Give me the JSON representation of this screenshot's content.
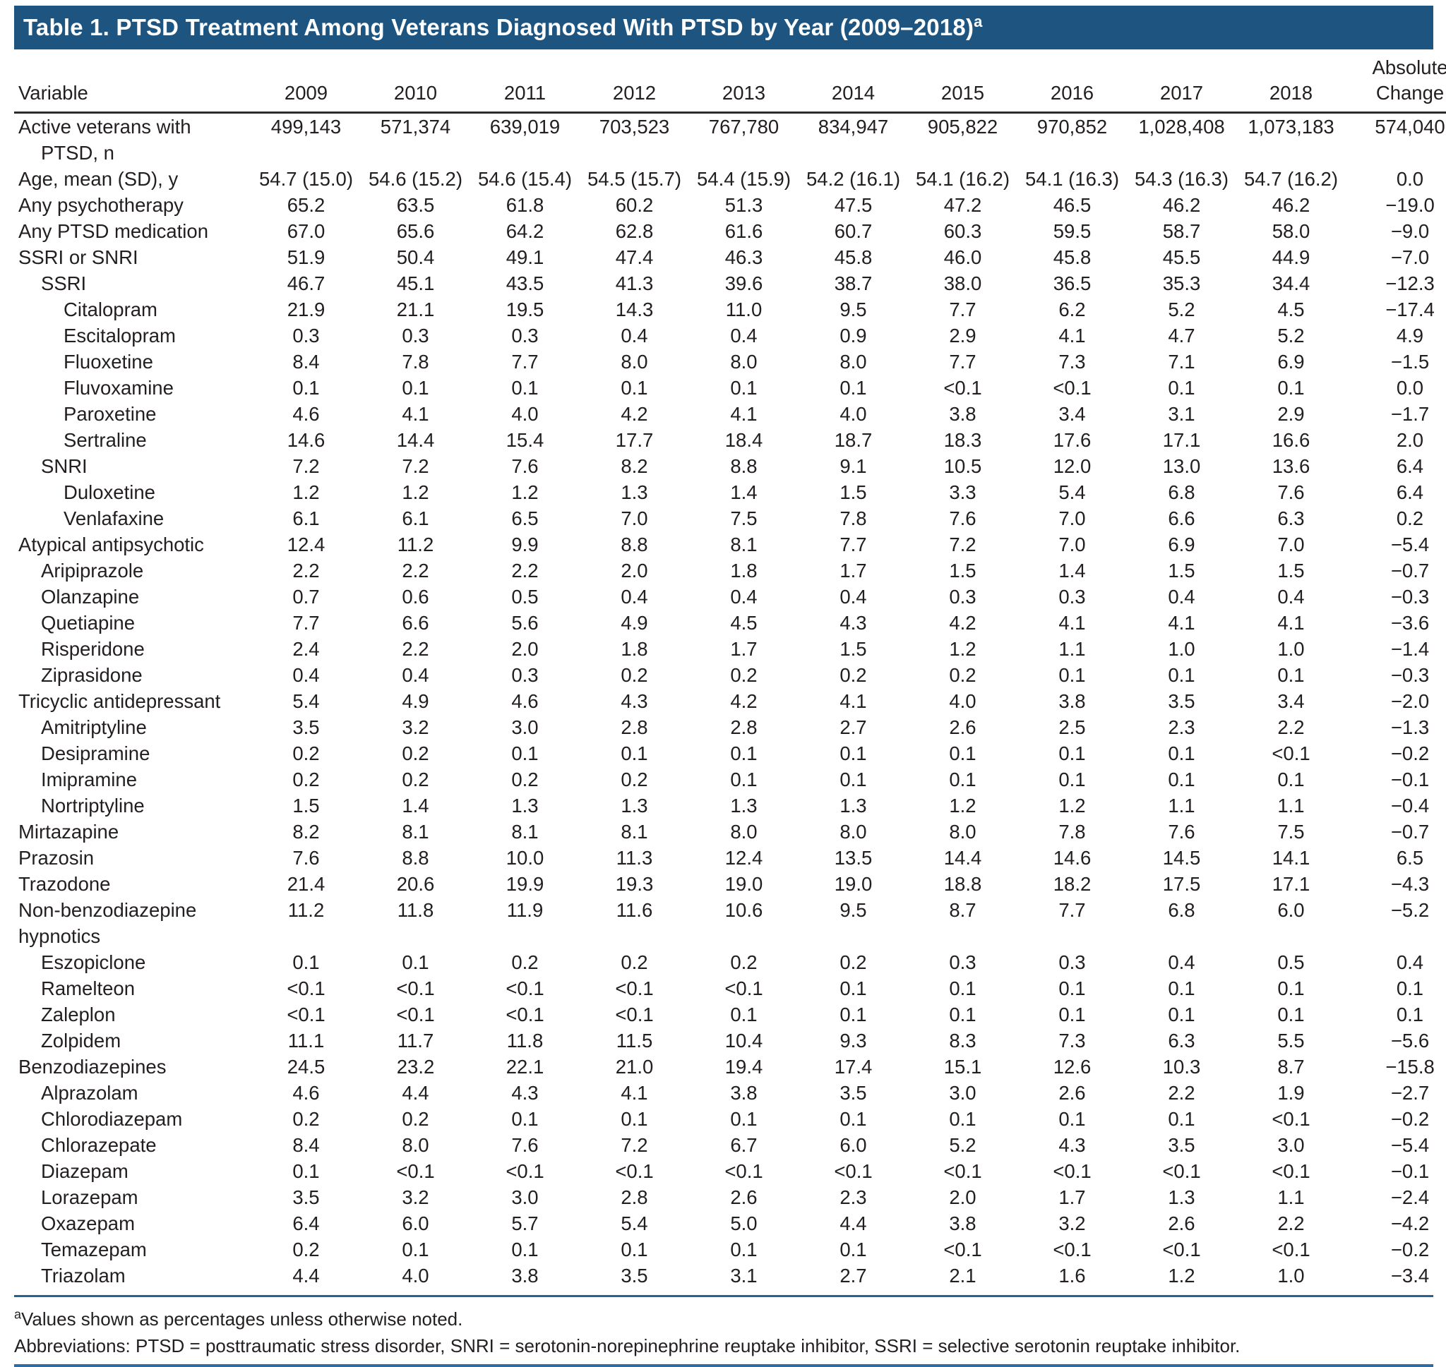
{
  "title": {
    "text": "Table 1. PTSD Treatment Among Veterans Diagnosed With PTSD by Year (2009–2018)",
    "superscript": "a"
  },
  "colors": {
    "title_bar_blue": "#1d5480",
    "header_rule_dark": "#2b2b2b",
    "upper_rule_blue": "#20648f",
    "bottom_rule_blue": "#2e6da4",
    "title_text": "#ffffff",
    "body_text": "#231f20"
  },
  "header": {
    "variable": "Variable",
    "years": [
      "2009",
      "2010",
      "2011",
      "2012",
      "2013",
      "2014",
      "2015",
      "2016",
      "2017",
      "2018"
    ],
    "change_line1": "Absolute",
    "change_line2": "Change"
  },
  "rows": [
    {
      "lines": [
        {
          "text": "Active veterans with",
          "indent": 0
        },
        {
          "text": "PTSD, n",
          "indent": 1
        }
      ],
      "values": [
        "499,143",
        "571,374",
        "639,019",
        "703,523",
        "767,780",
        "834,947",
        "905,822",
        "970,852",
        "1,028,408",
        "1,073,183",
        "574,040"
      ]
    },
    {
      "lines": [
        {
          "text": "Age, mean (SD), y",
          "indent": 0
        }
      ],
      "values": [
        "54.7 (15.0)",
        "54.6 (15.2)",
        "54.6 (15.4)",
        "54.5 (15.7)",
        "54.4 (15.9)",
        "54.2 (16.1)",
        "54.1 (16.2)",
        "54.1 (16.3)",
        "54.3 (16.3)",
        "54.7 (16.2)",
        "0.0"
      ]
    },
    {
      "lines": [
        {
          "text": "Any psychotherapy",
          "indent": 0
        }
      ],
      "values": [
        "65.2",
        "63.5",
        "61.8",
        "60.2",
        "51.3",
        "47.5",
        "47.2",
        "46.5",
        "46.2",
        "46.2",
        "−19.0"
      ]
    },
    {
      "lines": [
        {
          "text": "Any PTSD medication",
          "indent": 0
        }
      ],
      "values": [
        "67.0",
        "65.6",
        "64.2",
        "62.8",
        "61.6",
        "60.7",
        "60.3",
        "59.5",
        "58.7",
        "58.0",
        "−9.0"
      ]
    },
    {
      "lines": [
        {
          "text": "SSRI or SNRI",
          "indent": 0
        }
      ],
      "values": [
        "51.9",
        "50.4",
        "49.1",
        "47.4",
        "46.3",
        "45.8",
        "46.0",
        "45.8",
        "45.5",
        "44.9",
        "−7.0"
      ]
    },
    {
      "lines": [
        {
          "text": "SSRI",
          "indent": 1
        }
      ],
      "values": [
        "46.7",
        "45.1",
        "43.5",
        "41.3",
        "39.6",
        "38.7",
        "38.0",
        "36.5",
        "35.3",
        "34.4",
        "−12.3"
      ]
    },
    {
      "lines": [
        {
          "text": "Citalopram",
          "indent": 2
        }
      ],
      "values": [
        "21.9",
        "21.1",
        "19.5",
        "14.3",
        "11.0",
        "9.5",
        "7.7",
        "6.2",
        "5.2",
        "4.5",
        "−17.4"
      ]
    },
    {
      "lines": [
        {
          "text": "Escitalopram",
          "indent": 2
        }
      ],
      "values": [
        "0.3",
        "0.3",
        "0.3",
        "0.4",
        "0.4",
        "0.9",
        "2.9",
        "4.1",
        "4.7",
        "5.2",
        "4.9"
      ]
    },
    {
      "lines": [
        {
          "text": "Fluoxetine",
          "indent": 2
        }
      ],
      "values": [
        "8.4",
        "7.8",
        "7.7",
        "8.0",
        "8.0",
        "8.0",
        "7.7",
        "7.3",
        "7.1",
        "6.9",
        "−1.5"
      ]
    },
    {
      "lines": [
        {
          "text": "Fluvoxamine",
          "indent": 2
        }
      ],
      "values": [
        "0.1",
        "0.1",
        "0.1",
        "0.1",
        "0.1",
        "0.1",
        "<0.1",
        "<0.1",
        "0.1",
        "0.1",
        "0.0"
      ]
    },
    {
      "lines": [
        {
          "text": "Paroxetine",
          "indent": 2
        }
      ],
      "values": [
        "4.6",
        "4.1",
        "4.0",
        "4.2",
        "4.1",
        "4.0",
        "3.8",
        "3.4",
        "3.1",
        "2.9",
        "−1.7"
      ]
    },
    {
      "lines": [
        {
          "text": "Sertraline",
          "indent": 2
        }
      ],
      "values": [
        "14.6",
        "14.4",
        "15.4",
        "17.7",
        "18.4",
        "18.7",
        "18.3",
        "17.6",
        "17.1",
        "16.6",
        "2.0"
      ]
    },
    {
      "lines": [
        {
          "text": "SNRI",
          "indent": 1
        }
      ],
      "values": [
        "7.2",
        "7.2",
        "7.6",
        "8.2",
        "8.8",
        "9.1",
        "10.5",
        "12.0",
        "13.0",
        "13.6",
        "6.4"
      ]
    },
    {
      "lines": [
        {
          "text": "Duloxetine",
          "indent": 2
        }
      ],
      "values": [
        "1.2",
        "1.2",
        "1.2",
        "1.3",
        "1.4",
        "1.5",
        "3.3",
        "5.4",
        "6.8",
        "7.6",
        "6.4"
      ]
    },
    {
      "lines": [
        {
          "text": "Venlafaxine",
          "indent": 2
        }
      ],
      "values": [
        "6.1",
        "6.1",
        "6.5",
        "7.0",
        "7.5",
        "7.8",
        "7.6",
        "7.0",
        "6.6",
        "6.3",
        "0.2"
      ]
    },
    {
      "lines": [
        {
          "text": "Atypical antipsychotic",
          "indent": 0
        }
      ],
      "values": [
        "12.4",
        "11.2",
        "9.9",
        "8.8",
        "8.1",
        "7.7",
        "7.2",
        "7.0",
        "6.9",
        "7.0",
        "−5.4"
      ]
    },
    {
      "lines": [
        {
          "text": "Aripiprazole",
          "indent": 1
        }
      ],
      "values": [
        "2.2",
        "2.2",
        "2.2",
        "2.0",
        "1.8",
        "1.7",
        "1.5",
        "1.4",
        "1.5",
        "1.5",
        "−0.7"
      ]
    },
    {
      "lines": [
        {
          "text": "Olanzapine",
          "indent": 1
        }
      ],
      "values": [
        "0.7",
        "0.6",
        "0.5",
        "0.4",
        "0.4",
        "0.4",
        "0.3",
        "0.3",
        "0.4",
        "0.4",
        "−0.3"
      ]
    },
    {
      "lines": [
        {
          "text": "Quetiapine",
          "indent": 1
        }
      ],
      "values": [
        "7.7",
        "6.6",
        "5.6",
        "4.9",
        "4.5",
        "4.3",
        "4.2",
        "4.1",
        "4.1",
        "4.1",
        "−3.6"
      ]
    },
    {
      "lines": [
        {
          "text": "Risperidone",
          "indent": 1
        }
      ],
      "values": [
        "2.4",
        "2.2",
        "2.0",
        "1.8",
        "1.7",
        "1.5",
        "1.2",
        "1.1",
        "1.0",
        "1.0",
        "−1.4"
      ]
    },
    {
      "lines": [
        {
          "text": "Ziprasidone",
          "indent": 1
        }
      ],
      "values": [
        "0.4",
        "0.4",
        "0.3",
        "0.2",
        "0.2",
        "0.2",
        "0.2",
        "0.1",
        "0.1",
        "0.1",
        "−0.3"
      ]
    },
    {
      "lines": [
        {
          "text": "Tricyclic antidepressant",
          "indent": 0
        }
      ],
      "values": [
        "5.4",
        "4.9",
        "4.6",
        "4.3",
        "4.2",
        "4.1",
        "4.0",
        "3.8",
        "3.5",
        "3.4",
        "−2.0"
      ]
    },
    {
      "lines": [
        {
          "text": "Amitriptyline",
          "indent": 1
        }
      ],
      "values": [
        "3.5",
        "3.2",
        "3.0",
        "2.8",
        "2.8",
        "2.7",
        "2.6",
        "2.5",
        "2.3",
        "2.2",
        "−1.3"
      ]
    },
    {
      "lines": [
        {
          "text": "Desipramine",
          "indent": 1
        }
      ],
      "values": [
        "0.2",
        "0.2",
        "0.1",
        "0.1",
        "0.1",
        "0.1",
        "0.1",
        "0.1",
        "0.1",
        "<0.1",
        "−0.2"
      ]
    },
    {
      "lines": [
        {
          "text": "Imipramine",
          "indent": 1
        }
      ],
      "values": [
        "0.2",
        "0.2",
        "0.2",
        "0.2",
        "0.1",
        "0.1",
        "0.1",
        "0.1",
        "0.1",
        "0.1",
        "−0.1"
      ]
    },
    {
      "lines": [
        {
          "text": "Nortriptyline",
          "indent": 1
        }
      ],
      "values": [
        "1.5",
        "1.4",
        "1.3",
        "1.3",
        "1.3",
        "1.3",
        "1.2",
        "1.2",
        "1.1",
        "1.1",
        "−0.4"
      ]
    },
    {
      "lines": [
        {
          "text": "Mirtazapine",
          "indent": 0
        }
      ],
      "values": [
        "8.2",
        "8.1",
        "8.1",
        "8.1",
        "8.0",
        "8.0",
        "8.0",
        "7.8",
        "7.6",
        "7.5",
        "−0.7"
      ]
    },
    {
      "lines": [
        {
          "text": "Prazosin",
          "indent": 0
        }
      ],
      "values": [
        "7.6",
        "8.8",
        "10.0",
        "11.3",
        "12.4",
        "13.5",
        "14.4",
        "14.6",
        "14.5",
        "14.1",
        "6.5"
      ]
    },
    {
      "lines": [
        {
          "text": "Trazodone",
          "indent": 0
        }
      ],
      "values": [
        "21.4",
        "20.6",
        "19.9",
        "19.3",
        "19.0",
        "19.0",
        "18.8",
        "18.2",
        "17.5",
        "17.1",
        "−4.3"
      ]
    },
    {
      "lines": [
        {
          "text": "Non-benzodiazepine",
          "indent": 0
        },
        {
          "text": "hypnotics",
          "indent": 0
        }
      ],
      "values": [
        "11.2",
        "11.8",
        "11.9",
        "11.6",
        "10.6",
        "9.5",
        "8.7",
        "7.7",
        "6.8",
        "6.0",
        "−5.2"
      ]
    },
    {
      "lines": [
        {
          "text": "Eszopiclone",
          "indent": 1
        }
      ],
      "values": [
        "0.1",
        "0.1",
        "0.2",
        "0.2",
        "0.2",
        "0.2",
        "0.3",
        "0.3",
        "0.4",
        "0.5",
        "0.4"
      ]
    },
    {
      "lines": [
        {
          "text": "Ramelteon",
          "indent": 1
        }
      ],
      "values": [
        "<0.1",
        "<0.1",
        "<0.1",
        "<0.1",
        "<0.1",
        "0.1",
        "0.1",
        "0.1",
        "0.1",
        "0.1",
        "0.1"
      ]
    },
    {
      "lines": [
        {
          "text": "Zaleplon",
          "indent": 1
        }
      ],
      "values": [
        "<0.1",
        "<0.1",
        "<0.1",
        "<0.1",
        "0.1",
        "0.1",
        "0.1",
        "0.1",
        "0.1",
        "0.1",
        "0.1"
      ]
    },
    {
      "lines": [
        {
          "text": "Zolpidem",
          "indent": 1
        }
      ],
      "values": [
        "11.1",
        "11.7",
        "11.8",
        "11.5",
        "10.4",
        "9.3",
        "8.3",
        "7.3",
        "6.3",
        "5.5",
        "−5.6"
      ]
    },
    {
      "lines": [
        {
          "text": "Benzodiazepines",
          "indent": 0
        }
      ],
      "values": [
        "24.5",
        "23.2",
        "22.1",
        "21.0",
        "19.4",
        "17.4",
        "15.1",
        "12.6",
        "10.3",
        "8.7",
        "−15.8"
      ]
    },
    {
      "lines": [
        {
          "text": "Alprazolam",
          "indent": 1
        }
      ],
      "values": [
        "4.6",
        "4.4",
        "4.3",
        "4.1",
        "3.8",
        "3.5",
        "3.0",
        "2.6",
        "2.2",
        "1.9",
        "−2.7"
      ]
    },
    {
      "lines": [
        {
          "text": "Chlorodiazepam",
          "indent": 1
        }
      ],
      "values": [
        "0.2",
        "0.2",
        "0.1",
        "0.1",
        "0.1",
        "0.1",
        "0.1",
        "0.1",
        "0.1",
        "<0.1",
        "−0.2"
      ]
    },
    {
      "lines": [
        {
          "text": "Chlorazepate",
          "indent": 1
        }
      ],
      "values": [
        "8.4",
        "8.0",
        "7.6",
        "7.2",
        "6.7",
        "6.0",
        "5.2",
        "4.3",
        "3.5",
        "3.0",
        "−5.4"
      ]
    },
    {
      "lines": [
        {
          "text": "Diazepam",
          "indent": 1
        }
      ],
      "values": [
        "0.1",
        "<0.1",
        "<0.1",
        "<0.1",
        "<0.1",
        "<0.1",
        "<0.1",
        "<0.1",
        "<0.1",
        "<0.1",
        "−0.1"
      ]
    },
    {
      "lines": [
        {
          "text": "Lorazepam",
          "indent": 1
        }
      ],
      "values": [
        "3.5",
        "3.2",
        "3.0",
        "2.8",
        "2.6",
        "2.3",
        "2.0",
        "1.7",
        "1.3",
        "1.1",
        "−2.4"
      ]
    },
    {
      "lines": [
        {
          "text": "Oxazepam",
          "indent": 1
        }
      ],
      "values": [
        "6.4",
        "6.0",
        "5.7",
        "5.4",
        "5.0",
        "4.4",
        "3.8",
        "3.2",
        "2.6",
        "2.2",
        "−4.2"
      ]
    },
    {
      "lines": [
        {
          "text": "Temazepam",
          "indent": 1
        }
      ],
      "values": [
        "0.2",
        "0.1",
        "0.1",
        "0.1",
        "0.1",
        "0.1",
        "<0.1",
        "<0.1",
        "<0.1",
        "<0.1",
        "−0.2"
      ]
    },
    {
      "lines": [
        {
          "text": "Triazolam",
          "indent": 1
        }
      ],
      "values": [
        "4.4",
        "4.0",
        "3.8",
        "3.5",
        "3.1",
        "2.7",
        "2.1",
        "1.6",
        "1.2",
        "1.0",
        "−3.4"
      ]
    }
  ],
  "footnotes": {
    "note_a_marker": "a",
    "note_a": "Values shown as percentages unless otherwise noted.",
    "abbreviations": "Abbreviations: PTSD = posttraumatic stress disorder, SNRI = serotonin-norepinephrine reuptake inhibitor, SSRI = selective serotonin reuptake inhibitor."
  }
}
